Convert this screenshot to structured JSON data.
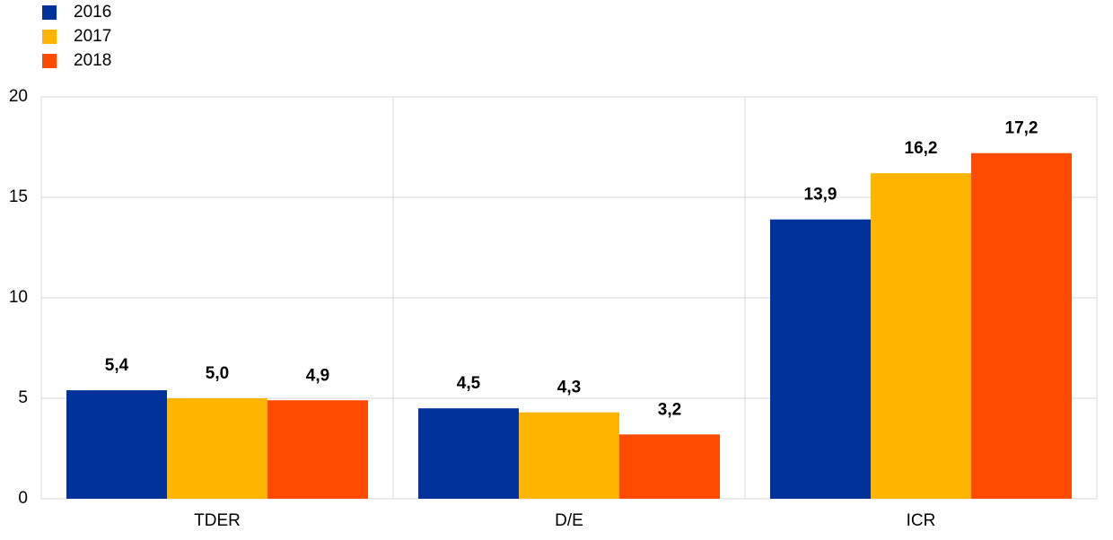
{
  "chart_data": {
    "type": "bar",
    "categories": [
      "TDER",
      "D/E",
      "ICR"
    ],
    "series": [
      {
        "name": "2016",
        "color": "#003299",
        "values": [
          5.4,
          4.5,
          13.9
        ],
        "value_labels": [
          "5,4",
          "4,5",
          "13,9"
        ]
      },
      {
        "name": "2017",
        "color": "#ffb400",
        "values": [
          5.0,
          4.3,
          16.2
        ],
        "value_labels": [
          "5,0",
          "4,3",
          "16,2"
        ]
      },
      {
        "name": "2018",
        "color": "#ff4b00",
        "values": [
          4.9,
          3.2,
          17.2
        ],
        "value_labels": [
          "4,9",
          "3,2",
          "17,2"
        ]
      }
    ],
    "ylim": [
      0,
      20
    ],
    "yticks": [
      0,
      5,
      10,
      15,
      20
    ],
    "grid": true,
    "legend": "top-left"
  }
}
